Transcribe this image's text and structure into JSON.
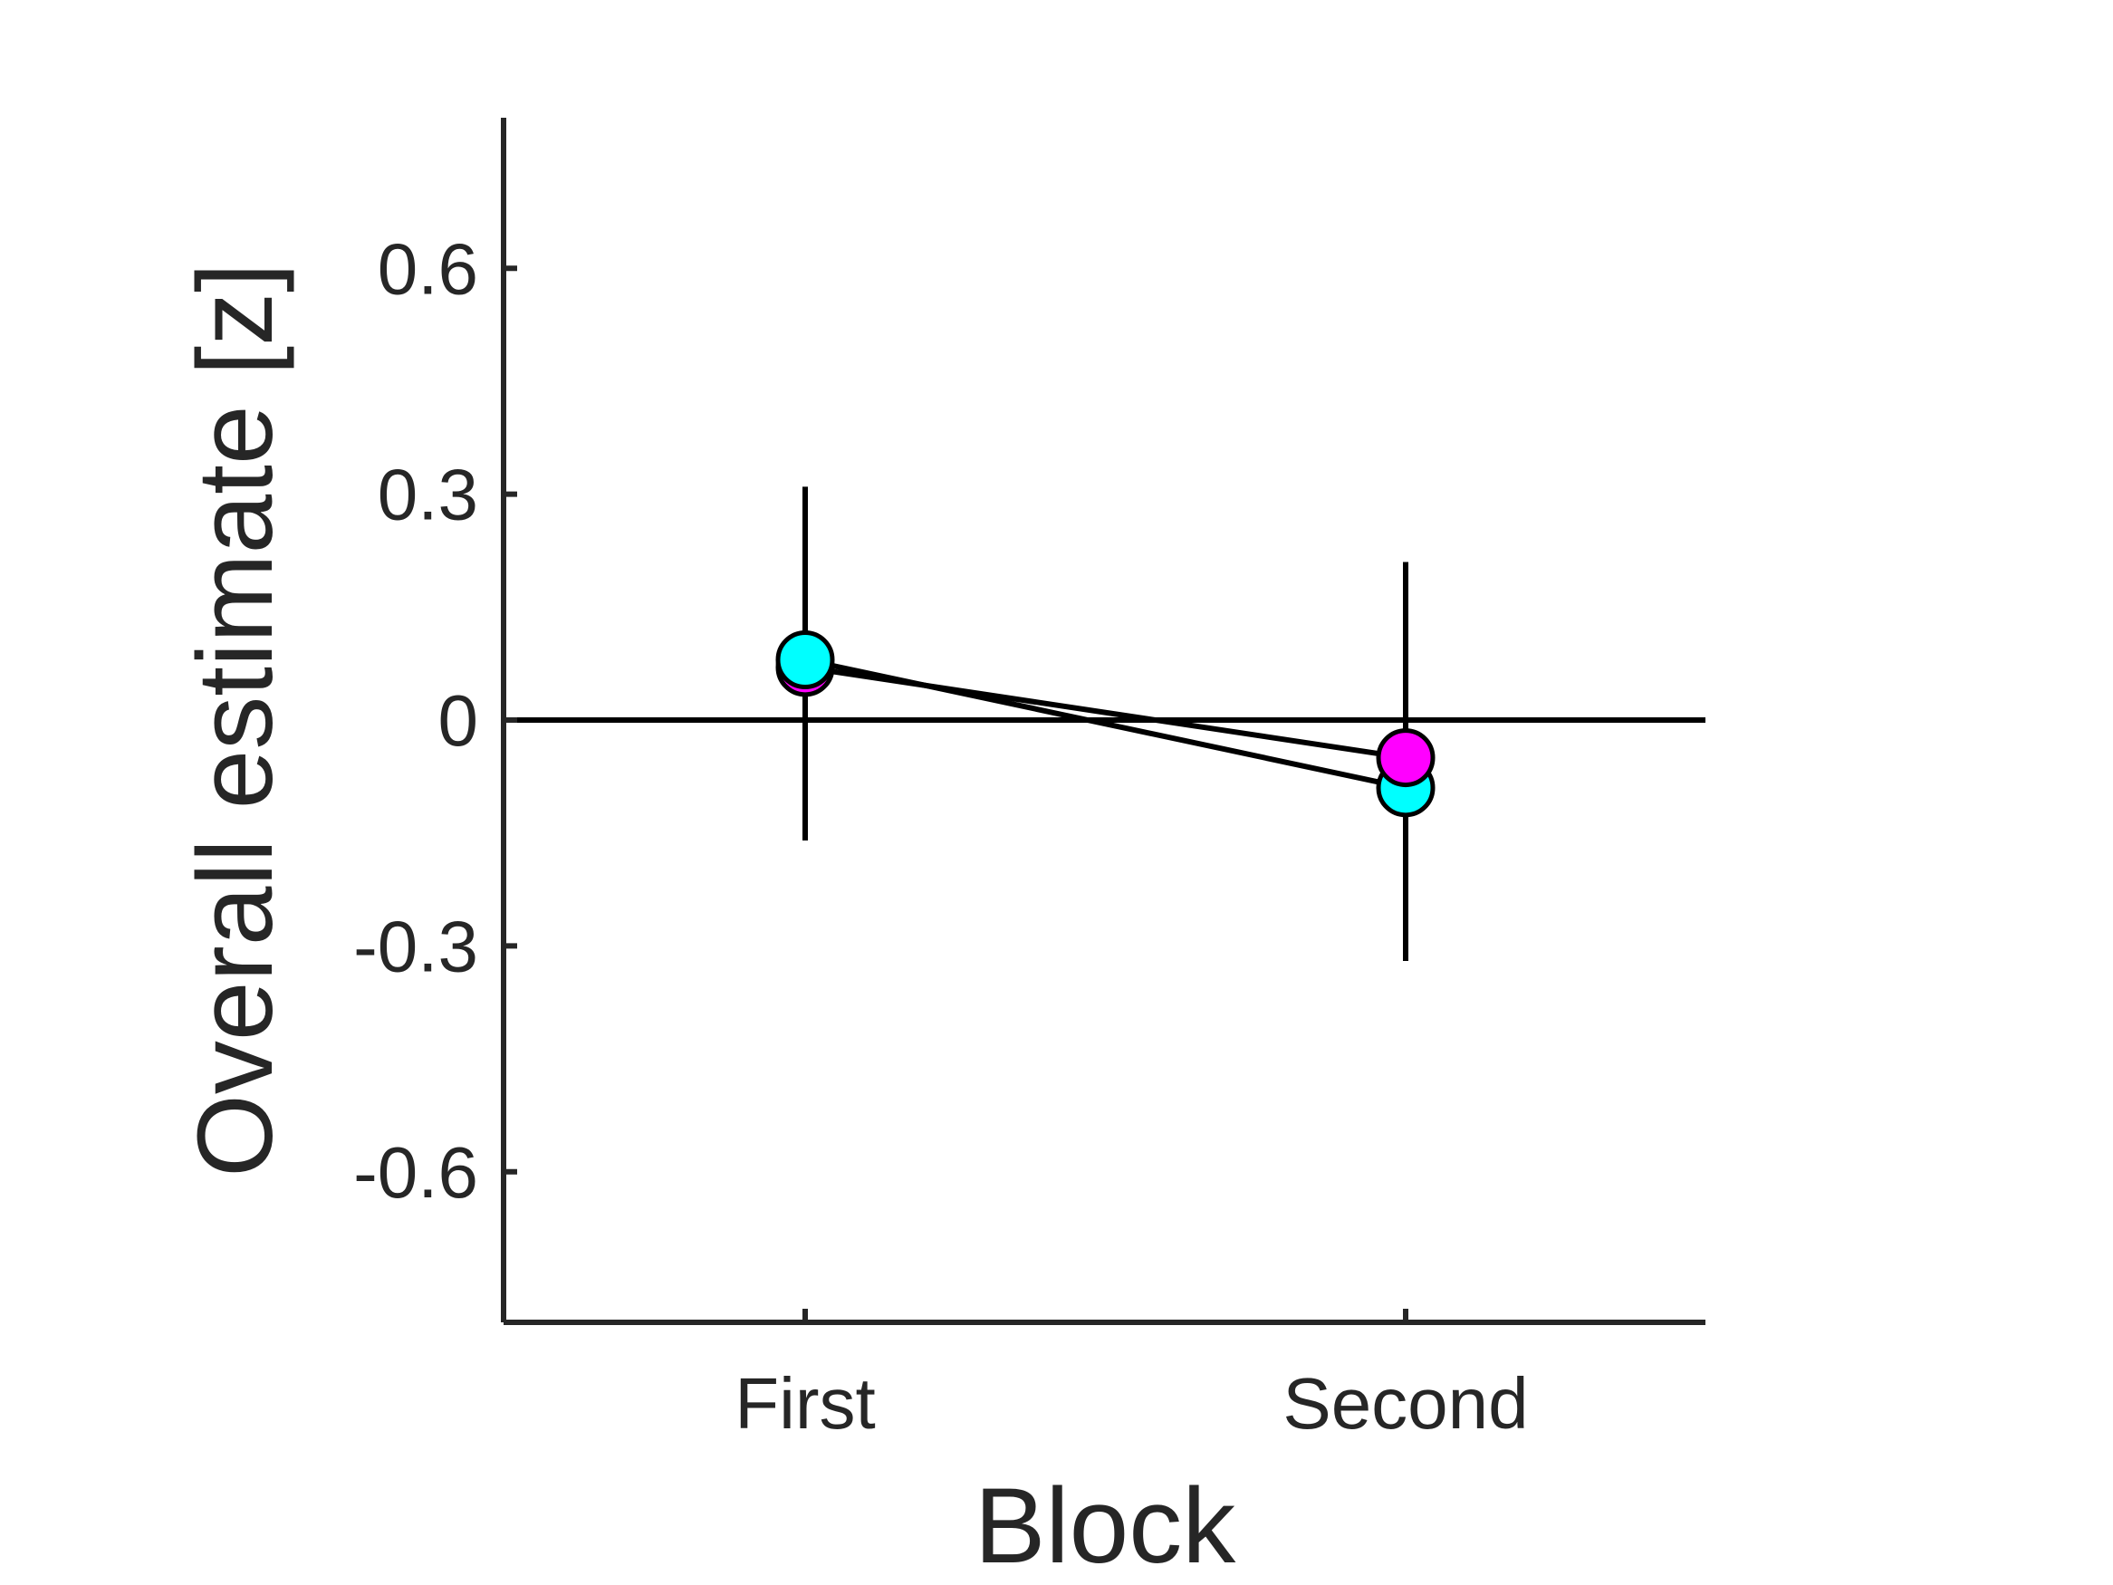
{
  "chart_data": {
    "type": "scatter",
    "xlabel": "Block",
    "ylabel": "Overall estimate [z]",
    "categories": [
      "First",
      "Second"
    ],
    "ylim": [
      -0.8,
      0.8
    ],
    "yticks": [
      -0.6,
      -0.3,
      0,
      0.3,
      0.6
    ],
    "ytick_labels": [
      "-0.6",
      "-0.3",
      "0",
      "0.3",
      "0.6"
    ],
    "reference_line_y": 0,
    "grid": false,
    "legend": "none",
    "error_bars": [
      {
        "category": "First",
        "low": -0.16,
        "high": 0.31
      },
      {
        "category": "Second",
        "low": -0.32,
        "high": 0.21
      }
    ],
    "series": [
      {
        "color": "#ff00ff",
        "marker": "circle",
        "connected": true,
        "values": [
          0.07,
          -0.05
        ]
      },
      {
        "color": "#00ffff",
        "marker": "circle",
        "connected": true,
        "values": [
          0.08,
          -0.09
        ]
      }
    ]
  }
}
